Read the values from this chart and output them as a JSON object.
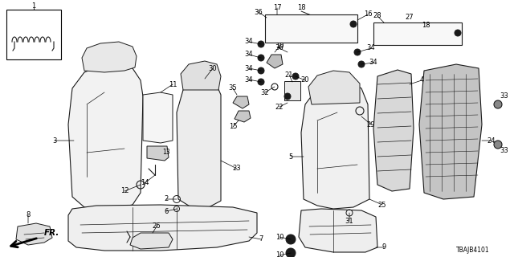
{
  "background_color": "#ffffff",
  "line_color": "#1a1a1a",
  "font_size": 6.0,
  "part_number": "TBAJB4101"
}
